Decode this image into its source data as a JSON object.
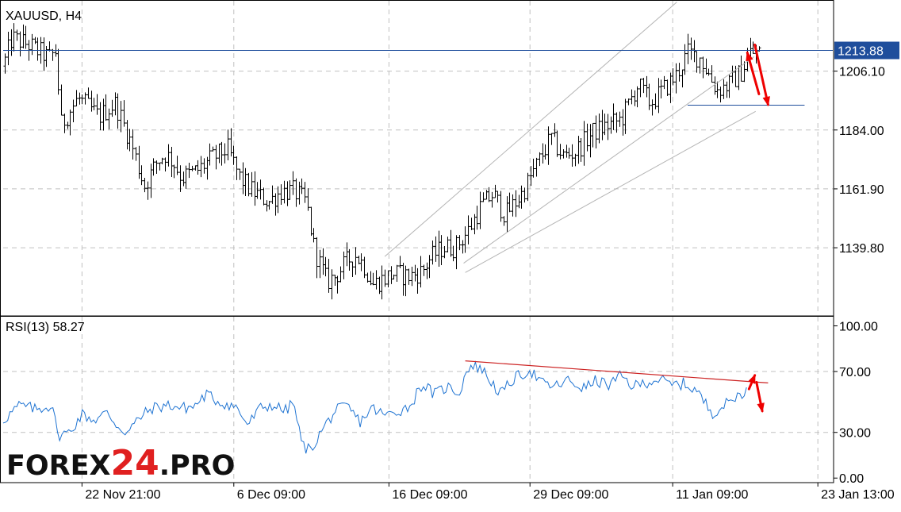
{
  "chart_data": [
    {
      "type": "ohlc",
      "symbol_label": "XAUUSD, H4",
      "price_levels": [
        "1206.10",
        "1184.00",
        "1161.90",
        "1139.80"
      ],
      "price_scale": [
        {
          "value": 1206.1
        },
        {
          "value": 1184.0
        },
        {
          "value": 1161.9
        },
        {
          "value": 1139.8
        }
      ],
      "ylim": [
        1114.5,
        1232.5
      ],
      "current_price": {
        "label": "1213.88",
        "value": 1213.88,
        "color": "#1f4e9c"
      },
      "support_level": 1193.5,
      "channel": {
        "upper": [
          [
            0.46,
            1136.5
          ],
          [
            0.812,
            1232.0
          ]
        ],
        "middle": [
          [
            0.555,
            1134.0
          ],
          [
            0.905,
            1211.5
          ]
        ],
        "lower": [
          [
            0.557,
            1130.5
          ],
          [
            0.907,
            1191.0
          ]
        ]
      },
      "arrow_up": {
        "from": [
          0.911,
          1197.5
        ],
        "to": [
          0.897,
          1213.0
        ],
        "color": "#ee0000"
      },
      "arrow_down": {
        "from": [
          0.906,
          1216.0
        ],
        "to": [
          0.922,
          1193.5
        ],
        "color": "#ee0000"
      },
      "anchors": [
        [
          0.0,
          1208.0
        ],
        [
          0.01,
          1218.5
        ],
        [
          0.03,
          1216.0
        ],
        [
          0.055,
          1211.0
        ],
        [
          0.063,
          1213.5
        ],
        [
          0.07,
          1186.0
        ],
        [
          0.09,
          1196.0
        ],
        [
          0.115,
          1189.0
        ],
        [
          0.135,
          1194.0
        ],
        [
          0.155,
          1178.0
        ],
        [
          0.17,
          1163.0
        ],
        [
          0.185,
          1172.0
        ],
        [
          0.195,
          1175.0
        ],
        [
          0.205,
          1172.0
        ],
        [
          0.215,
          1166.0
        ],
        [
          0.235,
          1169.0
        ],
        [
          0.25,
          1173.0
        ],
        [
          0.27,
          1177.0
        ],
        [
          0.285,
          1166.0
        ],
        [
          0.3,
          1161.0
        ],
        [
          0.32,
          1157.0
        ],
        [
          0.335,
          1161.0
        ],
        [
          0.35,
          1161.0
        ],
        [
          0.365,
          1157.0
        ],
        [
          0.375,
          1139.0
        ],
        [
          0.39,
          1127.0
        ],
        [
          0.4,
          1129.0
        ],
        [
          0.415,
          1135.0
        ],
        [
          0.425,
          1137.0
        ],
        [
          0.435,
          1133.0
        ],
        [
          0.445,
          1126.0
        ],
        [
          0.47,
          1130.0
        ],
        [
          0.49,
          1129.0
        ],
        [
          0.505,
          1131.0
        ],
        [
          0.515,
          1136.0
        ],
        [
          0.53,
          1140.0
        ],
        [
          0.545,
          1140.0
        ],
        [
          0.56,
          1146.0
        ],
        [
          0.575,
          1155.0
        ],
        [
          0.59,
          1160.0
        ],
        [
          0.605,
          1152.0
        ],
        [
          0.625,
          1160.0
        ],
        [
          0.645,
          1172.0
        ],
        [
          0.66,
          1181.0
        ],
        [
          0.675,
          1174.0
        ],
        [
          0.69,
          1176.0
        ],
        [
          0.71,
          1183.0
        ],
        [
          0.73,
          1186.0
        ],
        [
          0.745,
          1188.0
        ],
        [
          0.765,
          1201.0
        ],
        [
          0.78,
          1194.0
        ],
        [
          0.795,
          1199.0
        ],
        [
          0.81,
          1204.0
        ],
        [
          0.825,
          1213.0
        ],
        [
          0.84,
          1211.0
        ],
        [
          0.85,
          1205.0
        ],
        [
          0.86,
          1199.0
        ],
        [
          0.875,
          1201.0
        ],
        [
          0.89,
          1206.0
        ],
        [
          0.9,
          1213.0
        ],
        [
          0.91,
          1213.0
        ]
      ],
      "x_ticks": [
        {
          "label": "22 Nov 21:00",
          "pos": 0.095
        },
        {
          "label": "6 Dec 09:00",
          "pos": 0.278
        },
        {
          "label": "16 Dec 09:00",
          "pos": 0.465
        },
        {
          "label": "29 Dec 09:00",
          "pos": 0.635
        },
        {
          "label": "11 Jan 09:00",
          "pos": 0.807
        },
        {
          "label": "23 Jan 13:00",
          "pos": 0.982
        }
      ],
      "line_color": "#000000",
      "grid": true
    },
    {
      "type": "line",
      "indicator_label": "RSI(13) 58.27",
      "period": 13,
      "last_value": 58.27,
      "levels": [
        "100.00",
        "70.00",
        "30.00",
        "0.00"
      ],
      "level_values": [
        {
          "value": 100
        },
        {
          "value": 70
        },
        {
          "value": 30
        },
        {
          "value": 0
        }
      ],
      "ylim": [
        -3,
        106
      ],
      "trendline": {
        "from": [
          0.557,
          77.0
        ],
        "to": [
          0.922,
          62.5
        ],
        "color": "#cc2222"
      },
      "arrow_up": {
        "from": [
          0.899,
          58.5
        ],
        "to": [
          0.906,
          67.5
        ],
        "color": "#ee0000"
      },
      "arrow_down": {
        "from": [
          0.908,
          63.0
        ],
        "to": [
          0.915,
          44.0
        ],
        "color": "#ee0000"
      },
      "anchors": [
        [
          0.0,
          38.0
        ],
        [
          0.02,
          48.0
        ],
        [
          0.04,
          45.0
        ],
        [
          0.06,
          48.0
        ],
        [
          0.065,
          28.0
        ],
        [
          0.08,
          30.0
        ],
        [
          0.095,
          42.0
        ],
        [
          0.11,
          38.0
        ],
        [
          0.125,
          43.0
        ],
        [
          0.14,
          33.0
        ],
        [
          0.15,
          30.0
        ],
        [
          0.165,
          40.0
        ],
        [
          0.18,
          46.0
        ],
        [
          0.2,
          48.0
        ],
        [
          0.215,
          46.0
        ],
        [
          0.23,
          47.0
        ],
        [
          0.245,
          55.0
        ],
        [
          0.26,
          50.0
        ],
        [
          0.28,
          47.0
        ],
        [
          0.295,
          35.0
        ],
        [
          0.31,
          46.0
        ],
        [
          0.325,
          48.0
        ],
        [
          0.34,
          44.0
        ],
        [
          0.35,
          50.0
        ],
        [
          0.36,
          22.0
        ],
        [
          0.37,
          18.0
        ],
        [
          0.385,
          32.0
        ],
        [
          0.4,
          44.0
        ],
        [
          0.415,
          47.0
        ],
        [
          0.43,
          37.0
        ],
        [
          0.445,
          46.0
        ],
        [
          0.46,
          41.0
        ],
        [
          0.475,
          44.0
        ],
        [
          0.49,
          47.0
        ],
        [
          0.505,
          62.0
        ],
        [
          0.52,
          55.0
        ],
        [
          0.535,
          60.0
        ],
        [
          0.55,
          56.0
        ],
        [
          0.56,
          73.0
        ],
        [
          0.575,
          73.0
        ],
        [
          0.59,
          62.0
        ],
        [
          0.6,
          55.0
        ],
        [
          0.615,
          65.0
        ],
        [
          0.635,
          71.0
        ],
        [
          0.65,
          62.0
        ],
        [
          0.665,
          60.0
        ],
        [
          0.68,
          64.0
        ],
        [
          0.7,
          59.0
        ],
        [
          0.715,
          64.0
        ],
        [
          0.73,
          61.0
        ],
        [
          0.745,
          67.0
        ],
        [
          0.76,
          60.0
        ],
        [
          0.775,
          63.0
        ],
        [
          0.79,
          65.0
        ],
        [
          0.805,
          61.0
        ],
        [
          0.82,
          62.0
        ],
        [
          0.835,
          58.0
        ],
        [
          0.845,
          50.0
        ],
        [
          0.855,
          43.0
        ],
        [
          0.87,
          48.0
        ],
        [
          0.88,
          52.0
        ],
        [
          0.895,
          58.0
        ]
      ],
      "line_color": "#1e73d2",
      "grid": true
    }
  ],
  "watermark": {
    "prefix": "FOREX",
    "number": "24",
    "suffix": ".PRO"
  },
  "colors": {
    "grid": "#c0c0c0",
    "frame": "#000000",
    "bid_line": "#1f4e9c",
    "red_marks": "#ee0000",
    "logo_dark": "#111111",
    "logo_red": "#e02020"
  }
}
